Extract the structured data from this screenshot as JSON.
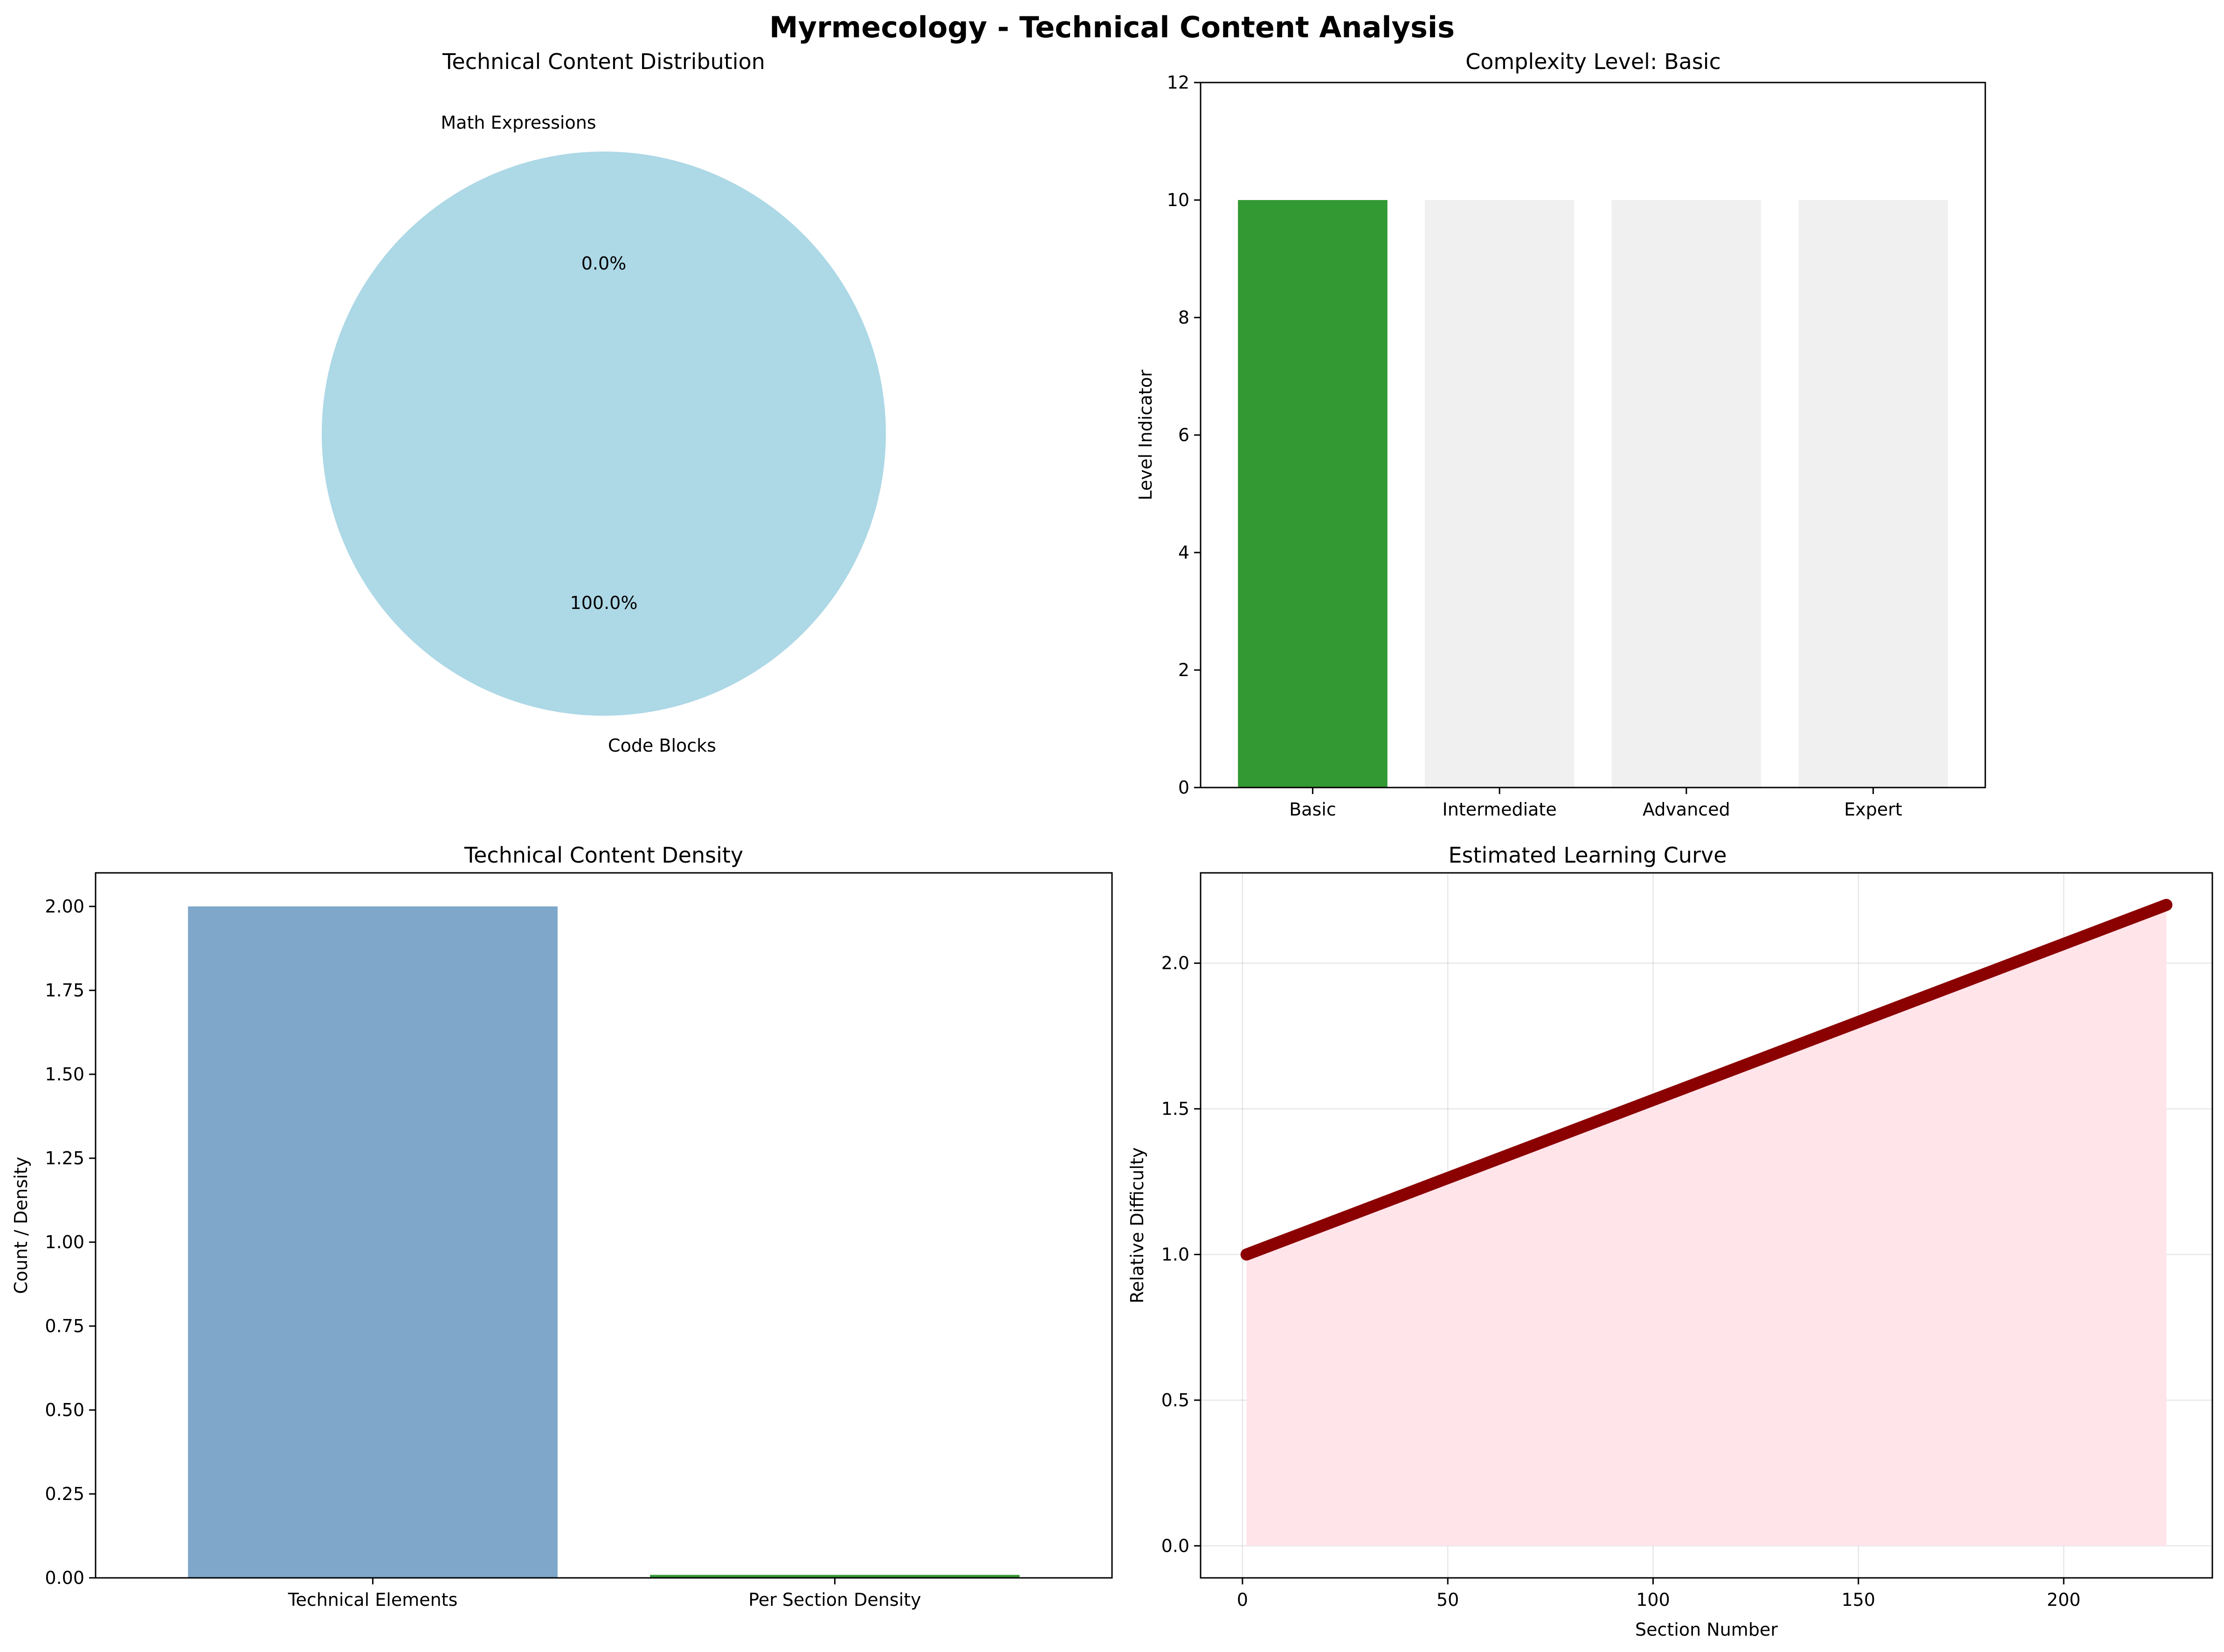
{
  "figure": {
    "title": "Myrmecology - Technical Content Analysis"
  },
  "chart_data": [
    {
      "type": "pie",
      "title": "Technical Content Distribution",
      "labels": [
        "Math Expressions",
        "Code Blocks"
      ],
      "values": [
        0,
        100
      ],
      "pct_labels": [
        "0.0%",
        "100.0%"
      ],
      "colors": [
        "#ffb6c1",
        "#add8e6"
      ]
    },
    {
      "type": "bar",
      "title": "Complexity Level: Basic",
      "categories": [
        "Basic",
        "Intermediate",
        "Advanced",
        "Expert"
      ],
      "values": [
        10,
        10,
        10,
        10
      ],
      "colors": [
        "#339933",
        "#f0f0f0",
        "#f0f0f0",
        "#f0f0f0"
      ],
      "xlabel": "",
      "ylabel": "Level Indicator",
      "ylim": [
        0,
        12
      ],
      "yticks": [
        0,
        2,
        4,
        6,
        8,
        10,
        12
      ],
      "ytick_labels": [
        "0",
        "2",
        "4",
        "6",
        "8",
        "10",
        "12"
      ]
    },
    {
      "type": "bar",
      "title": "Technical Content Density",
      "categories": [
        "Technical Elements",
        "Per Section Density"
      ],
      "values": [
        2,
        0.0089
      ],
      "colors": [
        "#7ea7c9",
        "#339933"
      ],
      "xlabel": "",
      "ylabel": "Count / Density",
      "ylim": [
        0,
        2.1
      ],
      "yticks": [
        0,
        0.25,
        0.5,
        0.75,
        1.0,
        1.25,
        1.5,
        1.75,
        2.0
      ],
      "ytick_labels": [
        "0.00",
        "0.25",
        "0.50",
        "0.75",
        "1.00",
        "1.25",
        "1.50",
        "1.75",
        "2.00"
      ]
    },
    {
      "type": "line",
      "title": "Estimated Learning Curve",
      "xlabel": "Section Number",
      "ylabel": "Relative Difficulty",
      "x_start": 1,
      "x_end": 225,
      "y_start": 1.0,
      "y_end": 2.2,
      "xlim": [
        -10.2,
        236.2
      ],
      "ylim": [
        -0.11,
        2.31
      ],
      "xticks": [
        0,
        50,
        100,
        150,
        200
      ],
      "xtick_labels": [
        "0",
        "50",
        "100",
        "150",
        "200"
      ],
      "yticks": [
        0,
        0.5,
        1.0,
        1.5,
        2.0
      ],
      "ytick_labels": [
        "0.0",
        "0.5",
        "1.0",
        "1.5",
        "2.0"
      ],
      "grid": true,
      "line_color": "#8b0000",
      "fill_color": "#ffe4ea"
    }
  ]
}
